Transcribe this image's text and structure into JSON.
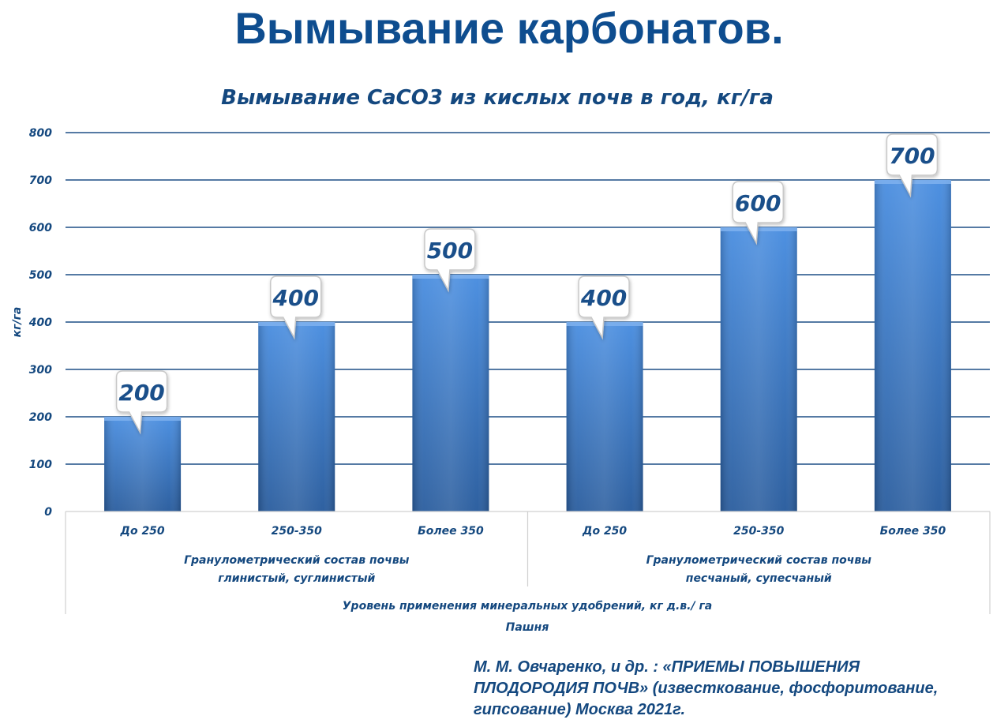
{
  "page": {
    "title": "Вымывание карбонатов."
  },
  "chart_data": {
    "type": "bar",
    "title": "Вымывание СаСО3 из кислых почв в год, кг/га",
    "ylabel": "кг/га",
    "ylim": [
      0,
      800
    ],
    "yticks": [
      "0",
      "100",
      "200",
      "300",
      "400",
      "500",
      "600",
      "700",
      "800"
    ],
    "grid": true,
    "categories": [
      "До 250",
      "250-350",
      "Более 350",
      "До 250",
      "250-350",
      "Более 350"
    ],
    "values": [
      200,
      400,
      500,
      400,
      600,
      700
    ],
    "data_labels": [
      "200",
      "400",
      "500",
      "400",
      "600",
      "700"
    ],
    "groups": [
      {
        "line1": "Гранулометрический состав почвы",
        "line2": "глинистый, суглинистый"
      },
      {
        "line1": "Гранулометрический состав почвы",
        "line2": "песчаный, супесчаный"
      }
    ],
    "xlabel": "Уровень применения минеральных удобрений, кг д.в./ га",
    "xlabel2": "Пашня",
    "colors": {
      "bar_light": "#4a8ee0",
      "bar_dark": "#2a5d9e",
      "grid": "#1d4e86",
      "axis_text": "#14487f",
      "callout_text": "#1a4f8a",
      "category_lines": "#d0d0d0"
    }
  },
  "citation": {
    "line1": "М. М. Овчаренко, и др. : «ПРИЕМЫ ПОВЫШЕНИЯ",
    "line2": "ПЛОДОРОДИЯ ПОЧВ» (известкование, фосфоритование,",
    "line3": "гипсование) Москва 2021г."
  }
}
